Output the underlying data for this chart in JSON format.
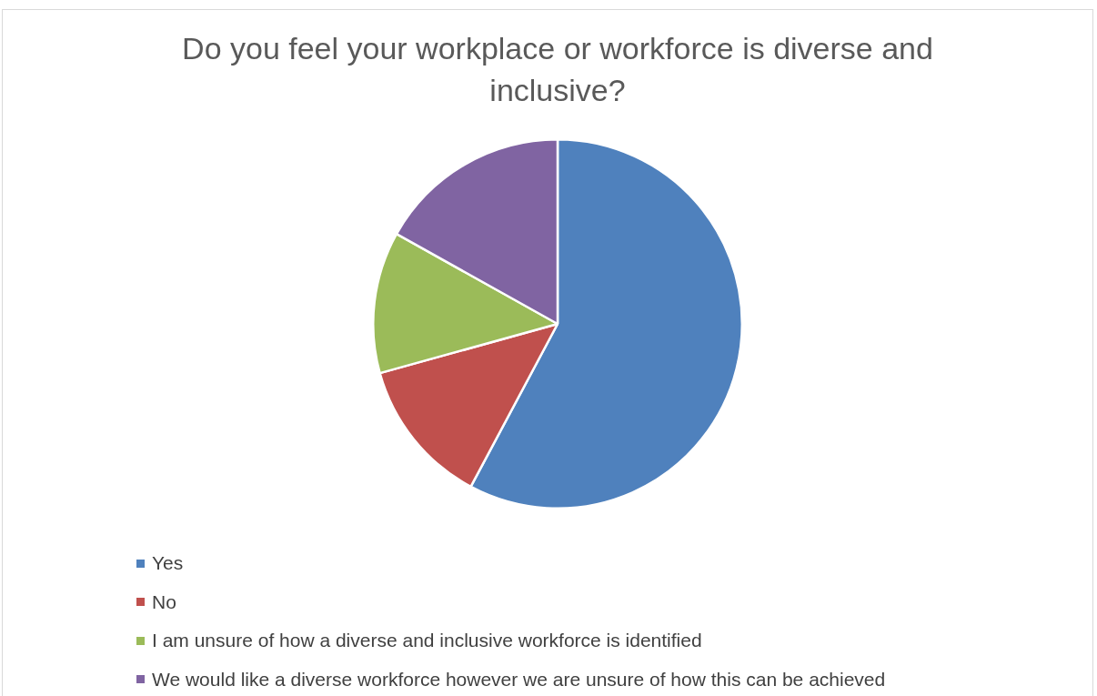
{
  "chart_data": {
    "type": "pie",
    "title": "Do you feel your workplace or workforce is diverse and inclusive?",
    "categories": [
      "Yes",
      "No",
      "I am unsure of how a diverse and inclusive workforce is identified",
      "We would like a diverse workforce however we are unsure of how this can be achieved"
    ],
    "values": [
      57.8,
      12.9,
      12.4,
      16.9
    ],
    "colors": [
      "#4f81bd",
      "#c0504d",
      "#9bbb59",
      "#8064a2"
    ],
    "legend": "bottom"
  }
}
